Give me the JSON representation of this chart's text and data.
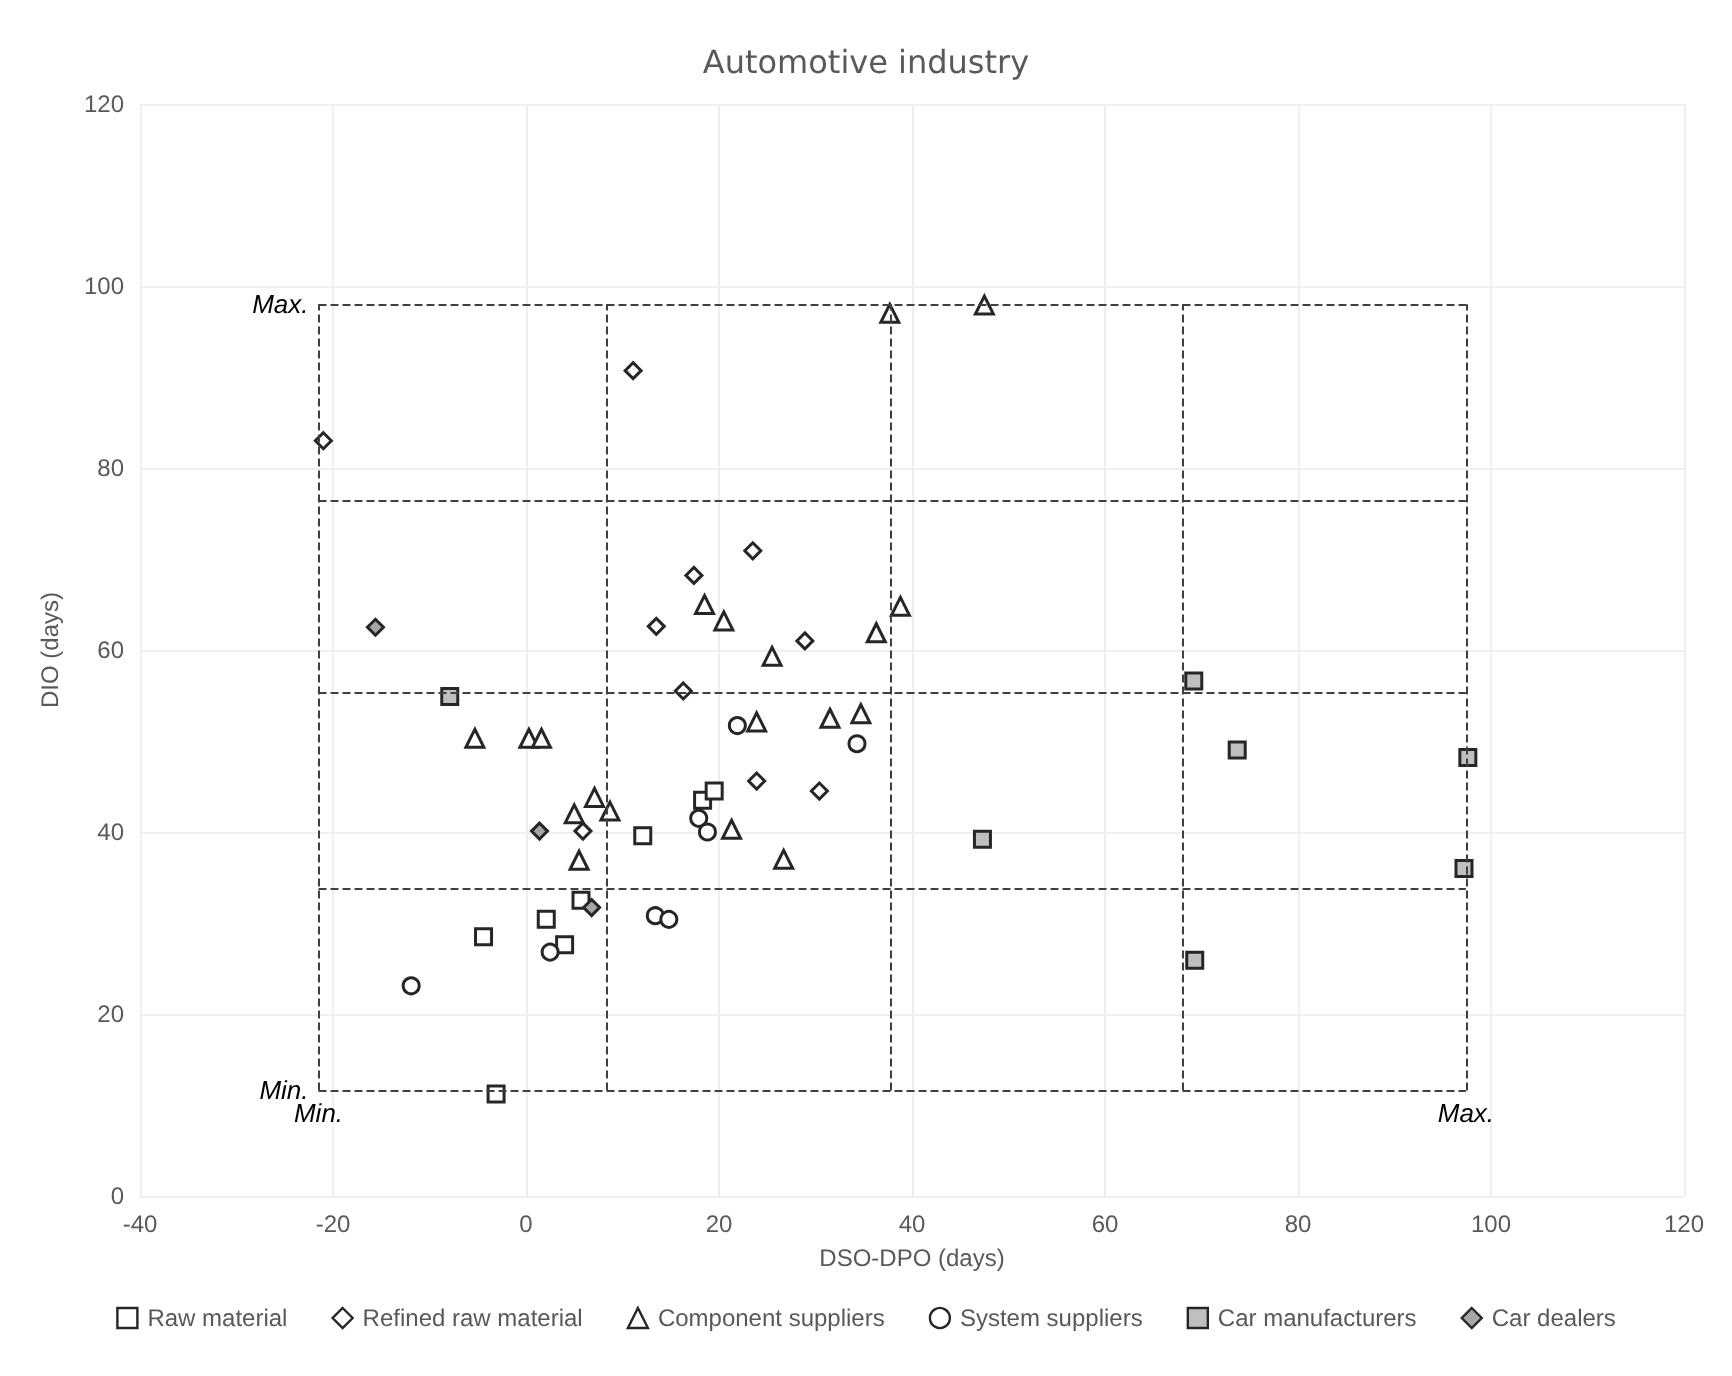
{
  "chart_data": {
    "type": "scatter",
    "title": "Automotive industry",
    "xlabel": "DSO-DPO (days)",
    "ylabel": "DIO (days)",
    "xlim": [
      -40,
      120
    ],
    "xticks": [
      -40,
      -20,
      0,
      20,
      40,
      60,
      80,
      100,
      120
    ],
    "ylim": [
      0,
      120
    ],
    "yticks": [
      0,
      20,
      40,
      60,
      80,
      100,
      120
    ],
    "grid": true,
    "legend": "bottom",
    "series": [
      {
        "name": "Raw material",
        "marker": "square",
        "color": "#ffffff",
        "x": [
          -3.1,
          12.1,
          18.3,
          19.5,
          5.7,
          2.1,
          -4.4,
          4.0
        ],
        "values": [
          11.2,
          39.6,
          43.5,
          44.5,
          32.5,
          30.4,
          28.5,
          27.6
        ]
      },
      {
        "name": "Refined raw material",
        "marker": "diamond",
        "color": "#ffffff",
        "x": [
          -21.0,
          11.1,
          23.5,
          17.4,
          13.5,
          28.9,
          16.3,
          23.9,
          30.4,
          5.9
        ],
        "values": [
          83.0,
          90.7,
          70.9,
          68.2,
          62.6,
          61.0,
          55.5,
          45.6,
          44.5,
          40.1
        ]
      },
      {
        "name": "Component suppliers",
        "marker": "triangle",
        "color": "#ffffff",
        "x": [
          37.7,
          47.5,
          18.5,
          20.5,
          38.8,
          36.3,
          25.5,
          23.9,
          31.5,
          34.7,
          -5.3,
          0.3,
          1.6,
          7.1,
          5.0,
          8.7,
          21.3,
          5.5,
          26.7
        ],
        "values": [
          97.0,
          97.9,
          65.0,
          63.2,
          64.8,
          61.9,
          59.3,
          52.1,
          52.5,
          53.0,
          50.3,
          50.3,
          50.3,
          43.8,
          42.0,
          42.3,
          40.3,
          36.9,
          37.0
        ]
      },
      {
        "name": "System suppliers",
        "marker": "circle",
        "color": "#ffffff",
        "x": [
          21.9,
          34.3,
          17.9,
          18.8,
          13.4,
          14.8,
          2.5,
          -11.9
        ],
        "values": [
          51.7,
          49.7,
          41.5,
          40.0,
          30.8,
          30.4,
          26.8,
          23.1
        ]
      },
      {
        "name": "Car manufacturers",
        "marker": "square",
        "color": "#bfbfbf",
        "x": [
          -7.9,
          69.2,
          73.7,
          97.6,
          47.3,
          97.2,
          69.3
        ],
        "values": [
          54.9,
          56.6,
          49.0,
          48.2,
          39.2,
          36.0,
          25.9
        ]
      },
      {
        "name": "Car dealers",
        "marker": "diamond",
        "color": "#a6a6a6",
        "x": [
          -15.6,
          1.4,
          6.8
        ],
        "values": [
          62.5,
          40.1,
          31.7
        ]
      }
    ],
    "ref_lines": [
      {
        "axis": "x",
        "value": -21.5,
        "label": "Min."
      },
      {
        "axis": "x",
        "value": 8.4,
        "label": null
      },
      {
        "axis": "x",
        "value": 37.8,
        "label": null
      },
      {
        "axis": "x",
        "value": 68.1,
        "label": null
      },
      {
        "axis": "x",
        "value": 97.4,
        "label": "Max."
      },
      {
        "axis": "y",
        "value": 98.0,
        "label": "Max."
      },
      {
        "axis": "y",
        "value": 76.5,
        "label": null
      },
      {
        "axis": "y",
        "value": 55.4,
        "label": null
      },
      {
        "axis": "y",
        "value": 33.8,
        "label": null
      },
      {
        "axis": "y",
        "value": 11.6,
        "label": "Min."
      }
    ]
  }
}
